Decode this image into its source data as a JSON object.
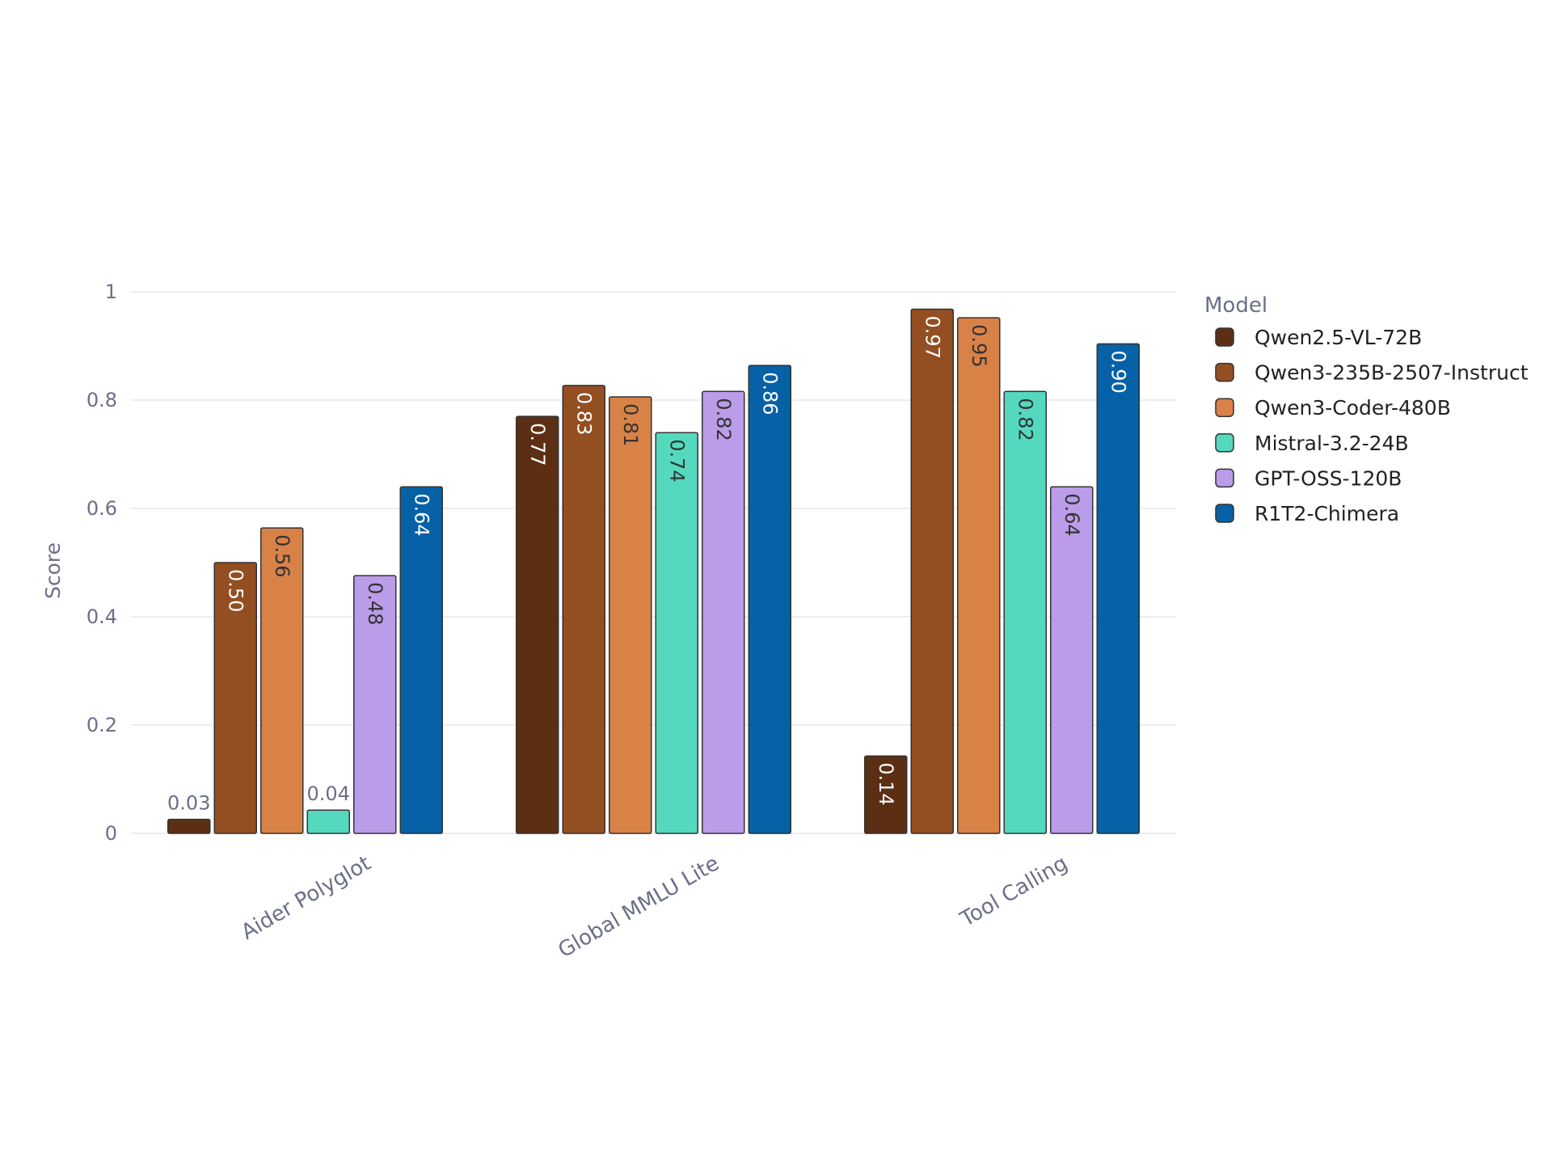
{
  "chart_data": {
    "type": "bar",
    "title": "",
    "xlabel": "",
    "ylabel": "Score",
    "ylim": [
      0,
      1
    ],
    "yticks": [
      0,
      0.2,
      0.4,
      0.6,
      0.8,
      1
    ],
    "ytick_labels": [
      "0",
      "0.2",
      "0.4",
      "0.6",
      "0.8",
      "1"
    ],
    "grid": true,
    "legend_title": "Model",
    "legend_position": "right",
    "categories": [
      "Aider Polyglot",
      "Global MMLU Lite",
      "Tool Calling"
    ],
    "series": [
      {
        "name": "Qwen2.5-VL-72B",
        "color": "#5c2f14",
        "values": [
          0.026,
          0.77,
          0.143
        ],
        "labels": [
          "0.03",
          "0.77",
          "0.14"
        ]
      },
      {
        "name": "Qwen3-235B-2507-Instruct",
        "color": "#934e21",
        "values": [
          0.5,
          0.827,
          0.968
        ],
        "labels": [
          "0.50",
          "0.83",
          "0.97"
        ]
      },
      {
        "name": "Qwen3-Coder-480B",
        "color": "#d98247",
        "values": [
          0.564,
          0.806,
          0.952
        ],
        "labels": [
          "0.56",
          "0.81",
          "0.95"
        ]
      },
      {
        "name": "Mistral-3.2-24B",
        "color": "#54d9bf",
        "values": [
          0.043,
          0.74,
          0.816
        ],
        "labels": [
          "0.04",
          "0.74",
          "0.82"
        ]
      },
      {
        "name": "GPT-OSS-120B",
        "color": "#bb9ce8",
        "values": [
          0.476,
          0.816,
          0.64
        ],
        "labels": [
          "0.48",
          "0.82",
          "0.64"
        ]
      },
      {
        "name": "R1T2-Chimera",
        "color": "#0761a6",
        "values": [
          0.64,
          0.864,
          0.904
        ],
        "labels": [
          "0.64",
          "0.86",
          "0.90"
        ]
      }
    ],
    "label_colors": {
      "Qwen2.5-VL-72B": "#ffffff",
      "Qwen3-235B-2507-Instruct": "#ffffff",
      "Qwen3-Coder-480B": "#333333",
      "Mistral-3.2-24B": "#333333",
      "GPT-OSS-120B": "#333333",
      "R1T2-Chimera": "#ffffff"
    },
    "outside_label_color": "#6b6f88",
    "gridline_color": "#e6e7ea",
    "bar_outline_color": "#333333"
  }
}
